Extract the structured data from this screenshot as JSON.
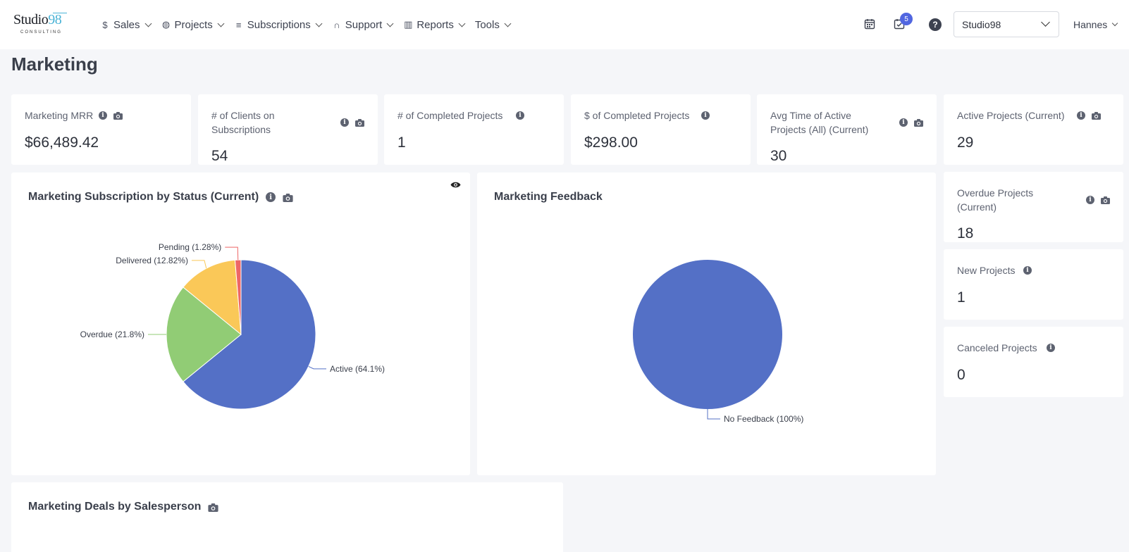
{
  "logo": {
    "brand_text": "Studio",
    "brand_num": "98",
    "sub": "CONSULTING"
  },
  "nav": [
    {
      "label": "Sales",
      "icon": "dollar-icon",
      "glyph": "$"
    },
    {
      "label": "Projects",
      "icon": "globe-icon",
      "glyph": "◍"
    },
    {
      "label": "Subscriptions",
      "icon": "stack-icon",
      "glyph": "≡"
    },
    {
      "label": "Support",
      "icon": "headset-icon",
      "glyph": "∩"
    },
    {
      "label": "Reports",
      "icon": "bar-chart-icon",
      "glyph": "▥"
    },
    {
      "label": "Tools",
      "icon": "",
      "glyph": ""
    }
  ],
  "header": {
    "tasks_badge": "5",
    "help_glyph": "?",
    "company_select": "Studio98",
    "user_name": "Hannes"
  },
  "page": {
    "title": "Marketing"
  },
  "kpis": {
    "mrr": {
      "label": "Marketing MRR",
      "value": "$66,489.42"
    },
    "clients": {
      "label": "# of Clients on Subscriptions",
      "value": "54"
    },
    "completed_count": {
      "label": "# of Completed Projects",
      "value": "1"
    },
    "completed_value": {
      "label": "$ of Completed Projects",
      "value": "$298.00"
    },
    "avg_time": {
      "label": "Avg Time of Active Projects (All) (Current)",
      "value": "30"
    },
    "active": {
      "label": "Active Projects (Current)",
      "value": "29"
    },
    "overdue": {
      "label": "Overdue Projects (Current)",
      "value": "18"
    },
    "new": {
      "label": "New Projects",
      "value": "1"
    },
    "canceled": {
      "label": "Canceled Projects",
      "value": "0"
    }
  },
  "charts": {
    "subscription_title": "Marketing Subscription by Status (Current)",
    "feedback_title": "Marketing Feedback",
    "deals_title": "Marketing Deals by Salesperson"
  },
  "chart_data": [
    {
      "type": "pie",
      "title": "Marketing Subscription by Status (Current)",
      "categories": [
        "Active",
        "Overdue",
        "Delivered",
        "Pending"
      ],
      "values": [
        64.1,
        21.8,
        12.82,
        1.28
      ],
      "labels": [
        "Active (64.1%)",
        "Overdue (21.8%)",
        "Delivered (12.82%)",
        "Pending (1.28%)"
      ],
      "colors": [
        "#5470c6",
        "#91cc75",
        "#fac858",
        "#ee6666"
      ]
    },
    {
      "type": "pie",
      "title": "Marketing Feedback",
      "categories": [
        "No Feedback"
      ],
      "values": [
        100
      ],
      "labels": [
        "No Feedback (100%)"
      ],
      "colors": [
        "#5470c6"
      ]
    }
  ]
}
